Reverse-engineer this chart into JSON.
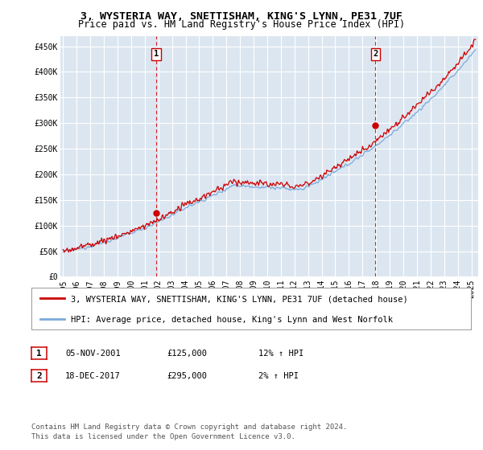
{
  "title": "3, WYSTERIA WAY, SNETTISHAM, KING'S LYNN, PE31 7UF",
  "subtitle": "Price paid vs. HM Land Registry's House Price Index (HPI)",
  "ylabel_ticks": [
    "£0",
    "£50K",
    "£100K",
    "£150K",
    "£200K",
    "£250K",
    "£300K",
    "£350K",
    "£400K",
    "£450K"
  ],
  "ytick_values": [
    0,
    50000,
    100000,
    150000,
    200000,
    250000,
    300000,
    350000,
    400000,
    450000
  ],
  "ylim": [
    0,
    470000
  ],
  "xlim_start": 1994.8,
  "xlim_end": 2025.5,
  "xtick_years": [
    1995,
    1996,
    1997,
    1998,
    1999,
    2000,
    2001,
    2002,
    2003,
    2004,
    2005,
    2006,
    2007,
    2008,
    2009,
    2010,
    2011,
    2012,
    2013,
    2014,
    2015,
    2016,
    2017,
    2018,
    2019,
    2020,
    2021,
    2022,
    2023,
    2024,
    2025
  ],
  "sale1_x": 2001.85,
  "sale1_y": 125000,
  "sale1_label": "1",
  "sale2_x": 2017.95,
  "sale2_y": 295000,
  "sale2_label": "2",
  "legend_red": "3, WYSTERIA WAY, SNETTISHAM, KING'S LYNN, PE31 7UF (detached house)",
  "legend_blue": "HPI: Average price, detached house, King's Lynn and West Norfolk",
  "table_rows": [
    [
      "1",
      "05-NOV-2001",
      "£125,000",
      "12% ↑ HPI"
    ],
    [
      "2",
      "18-DEC-2017",
      "£295,000",
      "2% ↑ HPI"
    ]
  ],
  "footnote1": "Contains HM Land Registry data © Crown copyright and database right 2024.",
  "footnote2": "This data is licensed under the Open Government Licence v3.0.",
  "bg_color": "#ffffff",
  "plot_bg_color": "#dce6f1",
  "grid_color": "#ffffff",
  "red_color": "#cc0000",
  "blue_color": "#7aabdb",
  "sale_line_color": "#cc0000",
  "title_fontsize": 9.5,
  "subtitle_fontsize": 8.5,
  "tick_fontsize": 7,
  "legend_fontsize": 7.5,
  "table_fontsize": 7.5,
  "footnote_fontsize": 6.5
}
